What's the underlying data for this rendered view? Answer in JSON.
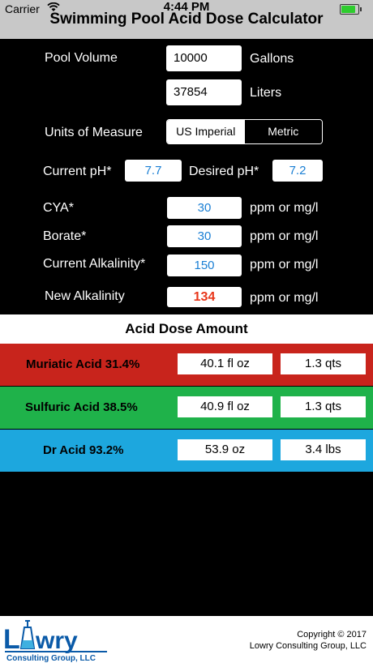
{
  "status": {
    "carrier": "Carrier",
    "time": "4:44 PM"
  },
  "app": {
    "title": "Swimming Pool Acid Dose Calculator"
  },
  "pool_volume": {
    "label": "Pool Volume",
    "gallons": "10000",
    "gallons_unit": "Gallons",
    "liters": "37854",
    "liters_unit": "Liters"
  },
  "units": {
    "label": "Units of Measure",
    "options": [
      "US Imperial",
      "Metric"
    ],
    "selected": "US Imperial"
  },
  "ph": {
    "current_label": "Current pH*",
    "current": "7.7",
    "desired_label": "Desired pH*",
    "desired": "7.2"
  },
  "cya": {
    "label": "CYA*",
    "value": "30",
    "unit": "ppm or mg/l"
  },
  "borate": {
    "label": "Borate*",
    "value": "30",
    "unit": "ppm or mg/l"
  },
  "alkalinity": {
    "label": "Current Alkalinity*",
    "value": "150",
    "unit": "ppm or mg/l"
  },
  "new_alkalinity": {
    "label": "New Alkalinity",
    "value": "134",
    "unit": "ppm or mg/l",
    "color": "#e8361a"
  },
  "dose": {
    "header": "Acid Dose Amount",
    "rows": [
      {
        "name": "Muriatic Acid 31.4%",
        "amount1": "40.1 fl oz",
        "amount2": "1.3 qts",
        "color": "#c8241c"
      },
      {
        "name": "Sulfuric Acid 38.5%",
        "amount1": "40.9 fl oz",
        "amount2": "1.3 qts",
        "color": "#1fb24a"
      },
      {
        "name": "Dr Acid 93.2%",
        "amount1": "53.9 oz",
        "amount2": "3.4 lbs",
        "color": "#1da7de"
      }
    ]
  },
  "footer": {
    "logo_text": "Lowry",
    "logo_sub": "Consulting Group, LLC",
    "copyright_line1": "Copyright © 2017",
    "copyright_line2": "Lowry Consulting Group, LLC"
  }
}
